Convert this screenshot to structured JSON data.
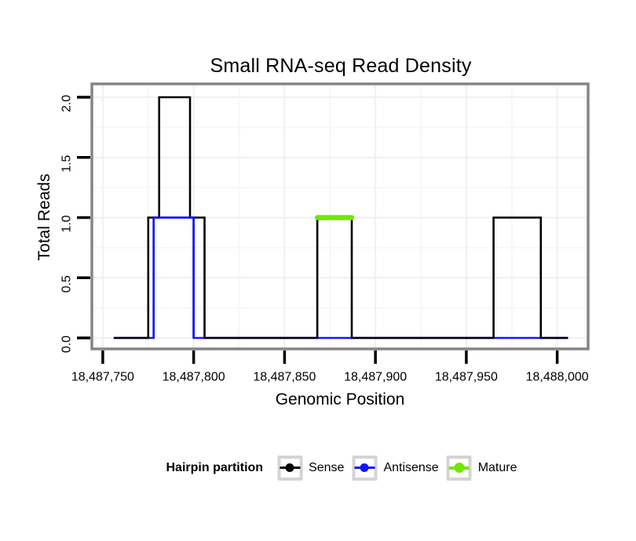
{
  "chart_data": {
    "type": "line",
    "title": "Small RNA-seq Read Density",
    "xlabel": "Genomic Position",
    "ylabel": "Total Reads",
    "xlim": [
      18487744,
      18488017
    ],
    "ylim": [
      -0.091,
      2.111
    ],
    "grid": true,
    "legend_position": "bottom",
    "x_ticks": [
      {
        "value": 18487750,
        "label": "18,487,750"
      },
      {
        "value": 18487800,
        "label": "18,487,800"
      },
      {
        "value": 18487850,
        "label": "18,487,850"
      },
      {
        "value": 18487900,
        "label": "18,487,900"
      },
      {
        "value": 18487950,
        "label": "18,487,950"
      },
      {
        "value": 18488000,
        "label": "18,488,000"
      }
    ],
    "y_ticks": [
      {
        "value": 0,
        "label": "0.0"
      },
      {
        "value": 0.5,
        "label": "0.5"
      },
      {
        "value": 1,
        "label": "1.0"
      },
      {
        "value": 1.5,
        "label": "1.5"
      },
      {
        "value": 2,
        "label": "2.0"
      }
    ],
    "x_minor_ticks": [
      18487775,
      18487825,
      18487875,
      18487925,
      18487975
    ],
    "y_minor_ticks": [
      0.25,
      0.75,
      1.25,
      1.75
    ],
    "series": [
      {
        "name": "Antisense",
        "color": "#1414FF",
        "type": "step",
        "line_width": 2.6,
        "overlay_nonzero": true,
        "points": [
          [
            18487756,
            0
          ],
          [
            18487778,
            0
          ],
          [
            18487778,
            1
          ],
          [
            18487800,
            1
          ],
          [
            18487800,
            0
          ],
          [
            18488006,
            0
          ]
        ]
      },
      {
        "name": "Sense",
        "color": "#000000",
        "type": "step",
        "line_width": 2.6,
        "points": [
          [
            18487756,
            0
          ],
          [
            18487775,
            0
          ],
          [
            18487775,
            1
          ],
          [
            18487781,
            1
          ],
          [
            18487781,
            2
          ],
          [
            18487798,
            2
          ],
          [
            18487798,
            1
          ],
          [
            18487806,
            1
          ],
          [
            18487806,
            0
          ],
          [
            18487868,
            0
          ],
          [
            18487868,
            1
          ],
          [
            18487887,
            1
          ],
          [
            18487887,
            0
          ],
          [
            18487965,
            0
          ],
          [
            18487965,
            1
          ],
          [
            18487991,
            1
          ],
          [
            18487991,
            0
          ],
          [
            18488006,
            0
          ]
        ]
      },
      {
        "name": "Mature",
        "color": "#74E600",
        "type": "segment",
        "line_width": 6.5,
        "points": [
          [
            18487868,
            1
          ],
          [
            18487887,
            1
          ]
        ]
      }
    ]
  },
  "legend": {
    "title": "Hairpin partition",
    "entries": [
      {
        "label": "Sense",
        "color": "#000000"
      },
      {
        "label": "Antisense",
        "color": "#1414FF"
      },
      {
        "label": "Mature",
        "color": "#74E600"
      }
    ]
  },
  "colors": {
    "panel_border": "#858585",
    "tick": "#000000",
    "grid_major": "#F0F0F0",
    "grid_minor": "#F7F7F7",
    "background": "#FFFFFF",
    "legend_key_border": "#D4D4D4",
    "text": "#000000"
  }
}
